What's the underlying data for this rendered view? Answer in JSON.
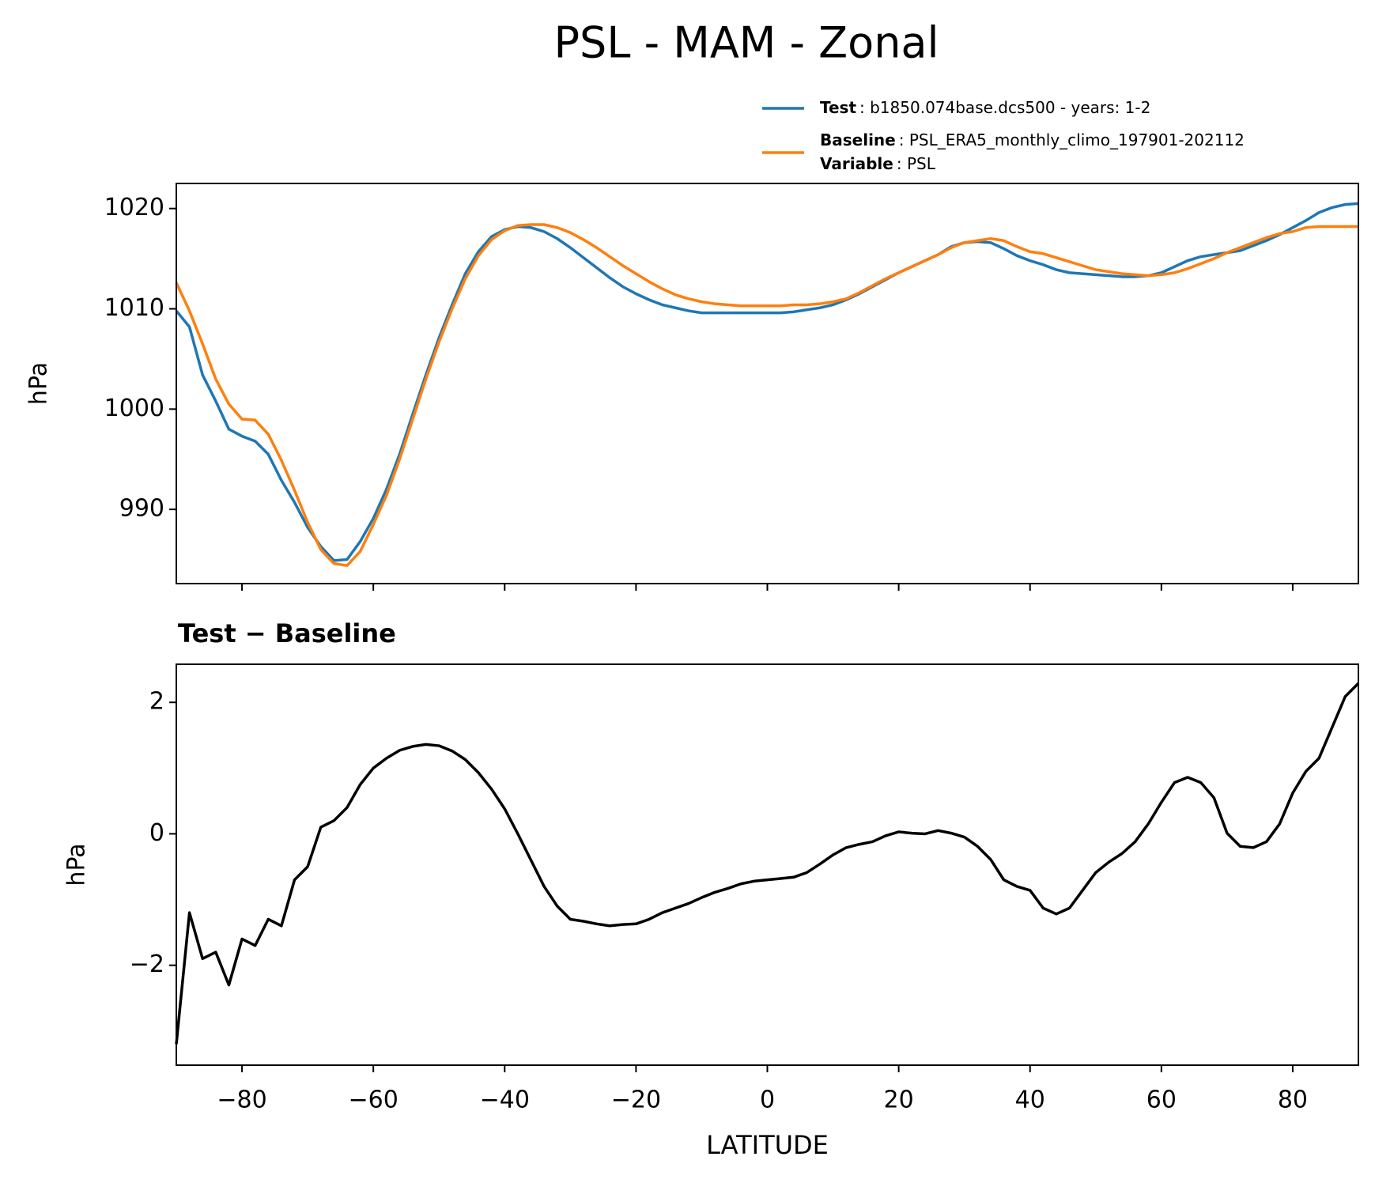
{
  "chart_data": [
    {
      "type": "line",
      "title": "PSL - MAM - Zonal",
      "ylabel": "hPa",
      "x": [
        -90,
        -88,
        -86,
        -84,
        -82,
        -80,
        -78,
        -76,
        -74,
        -72,
        -70,
        -68,
        -66,
        -64,
        -62,
        -60,
        -58,
        -56,
        -54,
        -52,
        -50,
        -48,
        -46,
        -44,
        -42,
        -40,
        -38,
        -36,
        -34,
        -32,
        -30,
        -28,
        -26,
        -24,
        -22,
        -20,
        -18,
        -16,
        -14,
        -12,
        -10,
        -8,
        -6,
        -4,
        -2,
        0,
        2,
        4,
        6,
        8,
        10,
        12,
        14,
        16,
        18,
        20,
        22,
        24,
        26,
        28,
        30,
        32,
        34,
        36,
        38,
        40,
        42,
        44,
        46,
        48,
        50,
        52,
        54,
        56,
        58,
        60,
        62,
        64,
        66,
        68,
        70,
        72,
        74,
        76,
        78,
        80,
        82,
        84,
        86,
        88,
        90
      ],
      "series": [
        {
          "name": "Test",
          "legend_text": ": b1850.074base.dcs500 - years: 1-2",
          "color": "#1f77b4",
          "values": [
            1009.8,
            1008.2,
            1003.4,
            1000.8,
            998.0,
            997.3,
            996.8,
            995.5,
            992.9,
            990.7,
            988.2,
            986.3,
            984.9,
            985.0,
            986.8,
            989.1,
            992.0,
            995.5,
            999.5,
            1003.4,
            1007.1,
            1010.4,
            1013.5,
            1015.7,
            1017.2,
            1017.9,
            1018.2,
            1018.1,
            1017.7,
            1017.0,
            1016.1,
            1015.1,
            1014.1,
            1013.1,
            1012.2,
            1011.5,
            1010.9,
            1010.4,
            1010.1,
            1009.8,
            1009.6,
            1009.6,
            1009.6,
            1009.6,
            1009.6,
            1009.6,
            1009.6,
            1009.7,
            1009.9,
            1010.1,
            1010.4,
            1010.9,
            1011.5,
            1012.2,
            1012.9,
            1013.6,
            1014.2,
            1014.8,
            1015.4,
            1016.2,
            1016.6,
            1016.7,
            1016.6,
            1016.0,
            1015.3,
            1014.8,
            1014.4,
            1013.9,
            1013.6,
            1013.5,
            1013.4,
            1013.3,
            1013.2,
            1013.2,
            1013.3,
            1013.6,
            1014.2,
            1014.8,
            1015.2,
            1015.4,
            1015.6,
            1015.8,
            1016.3,
            1016.8,
            1017.4,
            1018.1,
            1018.8,
            1019.6,
            1020.1,
            1020.4,
            1020.5
          ]
        },
        {
          "name": "Baseline",
          "legend_text": ": PSL_ERA5_monthly_climo_197901-202112",
          "color": "#ff7f0e",
          "values": [
            1012.6,
            1009.8,
            1006.5,
            1003.0,
            1000.5,
            999.0,
            998.9,
            997.5,
            994.9,
            991.9,
            988.7,
            986.0,
            984.6,
            984.4,
            985.8,
            988.5,
            991.4,
            995.0,
            999.0,
            1003.0,
            1006.7,
            1010.0,
            1013.0,
            1015.3,
            1016.9,
            1017.8,
            1018.3,
            1018.4,
            1018.4,
            1018.1,
            1017.6,
            1016.9,
            1016.1,
            1015.2,
            1014.3,
            1013.5,
            1012.7,
            1012.0,
            1011.4,
            1011.0,
            1010.7,
            1010.5,
            1010.4,
            1010.3,
            1010.3,
            1010.3,
            1010.3,
            1010.4,
            1010.4,
            1010.5,
            1010.7,
            1011.0,
            1011.6,
            1012.3,
            1013.0,
            1013.6,
            1014.2,
            1014.8,
            1015.4,
            1016.1,
            1016.6,
            1016.8,
            1017.0,
            1016.8,
            1016.2,
            1015.7,
            1015.5,
            1015.1,
            1014.7,
            1014.3,
            1013.9,
            1013.7,
            1013.5,
            1013.4,
            1013.3,
            1013.4,
            1013.6,
            1014.0,
            1014.5,
            1015.0,
            1015.6,
            1016.1,
            1016.6,
            1017.1,
            1017.5,
            1017.7,
            1018.1,
            1018.2,
            1018.2,
            1018.2,
            1018.2
          ]
        }
      ],
      "legend_extra": {
        "name": "Variable",
        "text": ": PSL"
      },
      "xlim": [
        -90,
        90
      ],
      "xticks": [
        -80,
        -60,
        -40,
        -20,
        0,
        20,
        40,
        60,
        80
      ],
      "ylim": [
        982.6,
        1022.5
      ],
      "yticks": [
        990,
        1000,
        1010,
        1020
      ],
      "legend": "upper right"
    },
    {
      "type": "line",
      "title": "Test − Baseline",
      "ylabel": "hPa",
      "xlabel": "LATITUDE",
      "x": [
        -90,
        -88,
        -86,
        -84,
        -82,
        -80,
        -78,
        -76,
        -74,
        -72,
        -70,
        -68,
        -66,
        -64,
        -62,
        -60,
        -58,
        -56,
        -54,
        -52,
        -50,
        -48,
        -46,
        -44,
        -42,
        -40,
        -38,
        -36,
        -34,
        -32,
        -30,
        -28,
        -26,
        -24,
        -22,
        -20,
        -18,
        -16,
        -14,
        -12,
        -10,
        -8,
        -6,
        -4,
        -2,
        0,
        2,
        4,
        6,
        8,
        10,
        12,
        14,
        16,
        18,
        20,
        22,
        24,
        26,
        28,
        30,
        32,
        34,
        36,
        38,
        40,
        42,
        44,
        46,
        48,
        50,
        52,
        54,
        56,
        58,
        60,
        62,
        64,
        66,
        68,
        70,
        72,
        74,
        76,
        78,
        80,
        82,
        84,
        86,
        88,
        90
      ],
      "color": "#000000",
      "values": [
        -3.2,
        -1.2,
        -1.9,
        -1.8,
        -2.3,
        -1.6,
        -1.7,
        -1.3,
        -1.4,
        -0.7,
        -0.5,
        0.1,
        0.2,
        0.4,
        0.75,
        1.0,
        1.15,
        1.27,
        1.33,
        1.36,
        1.34,
        1.26,
        1.13,
        0.93,
        0.68,
        0.38,
        0.0,
        -0.4,
        -0.8,
        -1.1,
        -1.3,
        -1.33,
        -1.37,
        -1.4,
        -1.38,
        -1.37,
        -1.3,
        -1.2,
        -1.13,
        -1.06,
        -0.97,
        -0.89,
        -0.83,
        -0.76,
        -0.72,
        -0.7,
        -0.68,
        -0.66,
        -0.59,
        -0.46,
        -0.32,
        -0.21,
        -0.16,
        -0.12,
        -0.03,
        0.03,
        0.01,
        0.0,
        0.05,
        0.01,
        -0.05,
        -0.19,
        -0.39,
        -0.7,
        -0.8,
        -0.86,
        -1.13,
        -1.22,
        -1.13,
        -0.86,
        -0.59,
        -0.43,
        -0.3,
        -0.12,
        0.15,
        0.48,
        0.78,
        0.86,
        0.78,
        0.55,
        0.01,
        -0.19,
        -0.21,
        -0.12,
        0.15,
        0.62,
        0.95,
        1.15,
        1.62,
        2.09,
        2.29
      ],
      "xlim": [
        -90,
        90
      ],
      "xticks": [
        {
          "value": -80,
          "label": "−80"
        },
        {
          "value": -60,
          "label": "−60"
        },
        {
          "value": -40,
          "label": "−40"
        },
        {
          "value": -20,
          "label": "−20"
        },
        0,
        20,
        40,
        60,
        80
      ],
      "ylim": [
        -3.52,
        2.58
      ],
      "yticks": [
        {
          "value": -2,
          "label": "−2"
        },
        0,
        2
      ]
    }
  ]
}
